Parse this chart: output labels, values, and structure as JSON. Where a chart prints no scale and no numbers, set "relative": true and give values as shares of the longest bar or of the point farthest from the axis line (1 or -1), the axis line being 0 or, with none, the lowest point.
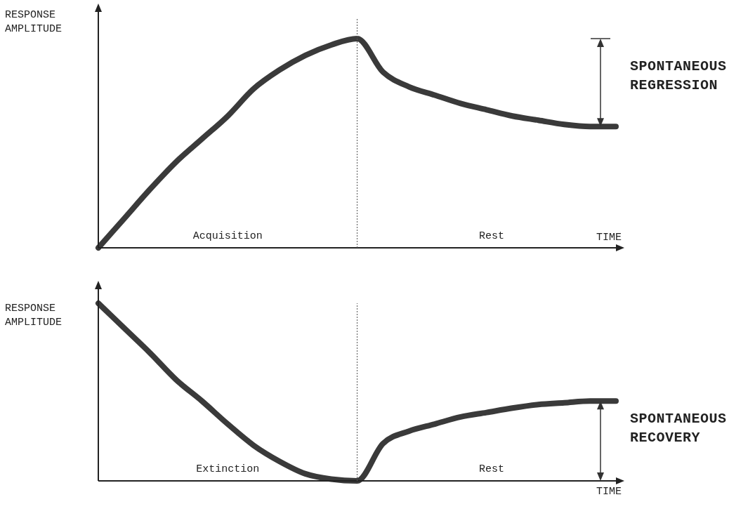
{
  "chart_data": [
    {
      "type": "line",
      "relative": true,
      "ylabel": "RESPONSE AMPLITUDE",
      "xlabel": "TIME",
      "categories": [
        null,
        null,
        null,
        null,
        null,
        null,
        null,
        null,
        null,
        null,
        null,
        null,
        null,
        null,
        null,
        null,
        null,
        null,
        null,
        null,
        null
      ],
      "series": [
        {
          "color": "#3a3a3a",
          "values": [
            0,
            0.14,
            0.28,
            0.41,
            0.52,
            0.63,
            0.76,
            0.85,
            0.92,
            0.97,
            1,
            0.84,
            0.77,
            0.73,
            0.69,
            0.66,
            0.63,
            0.61,
            0.59,
            0.58,
            0.58
          ]
        }
      ],
      "annotations": [
        "Acquisition",
        "Rest",
        "SPONTANEOUS REGRESSION"
      ],
      "tick_labels": false,
      "legend": false,
      "marker": "none",
      "line_style": "solid"
    },
    {
      "type": "line",
      "relative": true,
      "ylabel": "RESPONSE AMPLITUDE",
      "xlabel": "TIME",
      "categories": [
        null,
        null,
        null,
        null,
        null,
        null,
        null,
        null,
        null,
        null,
        null,
        null,
        null,
        null,
        null,
        null,
        null,
        null,
        null,
        null,
        null
      ],
      "series": [
        {
          "color": "#3a3a3a",
          "values": [
            1,
            0.86,
            0.72,
            0.57,
            0.45,
            0.32,
            0.2,
            0.11,
            0.04,
            0.01,
            0,
            0.21,
            0.28,
            0.32,
            0.36,
            0.385,
            0.41,
            0.43,
            0.44,
            0.45,
            0.45
          ]
        }
      ],
      "annotations": [
        "Extinction",
        "Rest",
        "SPONTANEOUS RECOVERY"
      ],
      "tick_labels": false,
      "legend": false,
      "marker": "none",
      "line_style": "solid"
    }
  ]
}
